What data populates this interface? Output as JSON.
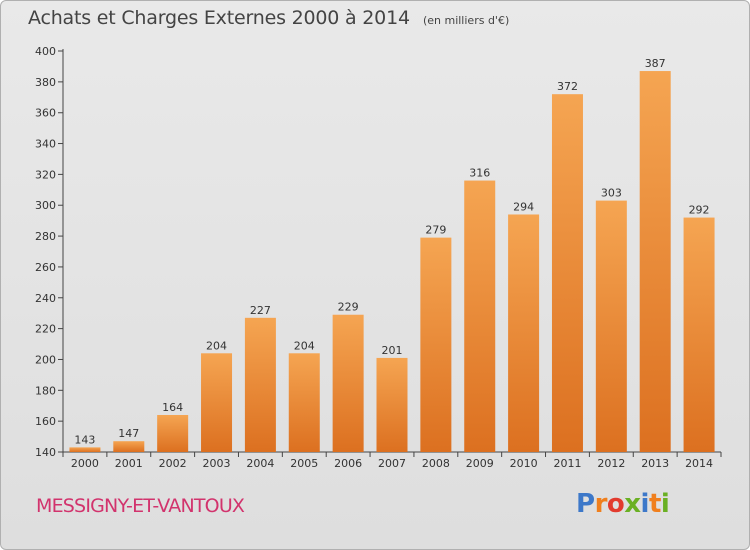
{
  "header": {
    "title": "Achats et Charges Externes 2000 à 2014",
    "unit": "(en milliers d'€)"
  },
  "footer": {
    "commune": "MESSIGNY-ET-VANTOUX",
    "logo_letters": [
      "P",
      "r",
      "o",
      "x",
      "i",
      "t",
      "i"
    ],
    "logo_colors": [
      "#3d78c9",
      "#f07f1d",
      "#e23b2e",
      "#6ab023",
      "#3d78c9",
      "#f07f1d",
      "#6ab023"
    ]
  },
  "colors": {
    "bar_light": "#f5a552",
    "bar_dark": "#dc7020",
    "axis": "#444444"
  },
  "chart_data": {
    "type": "bar",
    "title": "Achats et Charges Externes 2000 à 2014",
    "ylabel": "(en milliers d'€)",
    "categories": [
      "2000",
      "2001",
      "2002",
      "2003",
      "2004",
      "2005",
      "2006",
      "2007",
      "2008",
      "2009",
      "2010",
      "2011",
      "2012",
      "2013",
      "2014"
    ],
    "values": [
      143,
      147,
      164,
      204,
      227,
      204,
      229,
      201,
      279,
      316,
      294,
      372,
      303,
      387,
      292
    ],
    "ylim": [
      140,
      400
    ],
    "yticks": [
      140,
      160,
      180,
      200,
      220,
      240,
      260,
      280,
      300,
      320,
      340,
      360,
      380,
      400
    ],
    "grid": "none",
    "legend": "none"
  }
}
